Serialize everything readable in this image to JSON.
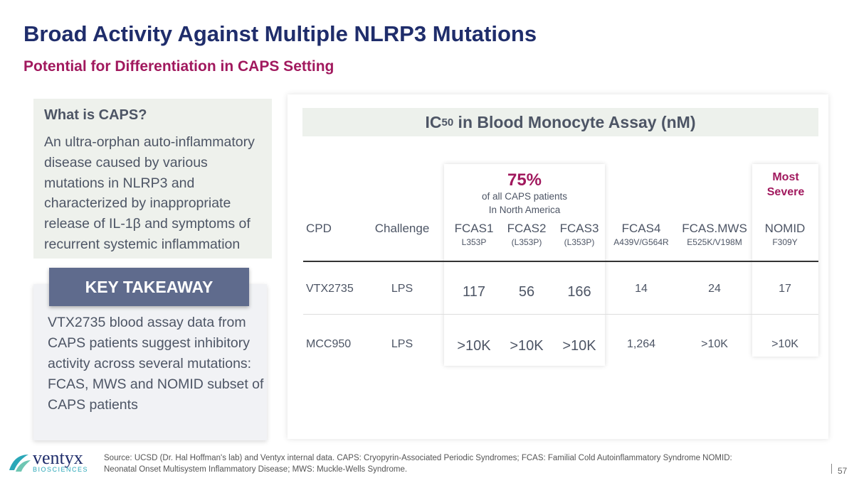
{
  "title": "Broad Activity Against Multiple NLRP3 Mutations",
  "subtitle": "Potential for Differentiation in CAPS Setting",
  "caps": {
    "heading": "What is CAPS?",
    "text": "An ultra-orphan auto-inflammatory disease caused by various mutations in NLRP3 and characterized by inappropriate release of IL-1β and symptoms of recurrent systemic inflammation"
  },
  "takeaway": {
    "badge": "KEY TAKEAWAY",
    "text": "VTX2735 blood assay data from CAPS patients suggest inhibitory activity across several mutations: FCAS, MWS and NOMID subset of CAPS patients"
  },
  "table": {
    "title_pre": "IC",
    "title_sub": "50",
    "title_post": " in Blood Monocyte Assay (nM)",
    "callout_pct": "75%",
    "callout_l1": "of all CAPS patients",
    "callout_l2": "In North America",
    "severe_l1": "Most",
    "severe_l2": "Severe",
    "headers": [
      "CPD",
      "Challenge",
      "FCAS1",
      "FCAS2",
      "FCAS3",
      "FCAS4",
      "FCAS.MWS",
      "NOMID"
    ],
    "subheaders": [
      "",
      "",
      "L353P",
      "(L353P)",
      "(L353P)",
      "A439V/G564R",
      "E525K/V198M",
      "F309Y"
    ],
    "rows": [
      [
        "VTX2735",
        "LPS",
        "117",
        "56",
        "166",
        "14",
        "24",
        "17"
      ],
      [
        "MCC950",
        "LPS",
        ">10K",
        ">10K",
        ">10K",
        "1,264",
        ">10K",
        ">10K"
      ]
    ]
  },
  "footer": "Source: UCSD (Dr. Hal Hoffman's lab) and Ventyx internal data. CAPS: Cryopyrin-Associated Periodic Syndromes; FCAS: Familial Cold Autoinflammatory Syndrome NOMID: Neonatal Onset Multisystem Inflammatory Disease; MWS: Muckle-Wells Syndrome.",
  "page": "57",
  "logo": {
    "name": "ventyx",
    "tag": "BIOSCIENCES"
  },
  "colors": {
    "navy": "#1f2d6b",
    "magenta": "#a1195e",
    "teal": "#2aa7b8"
  }
}
